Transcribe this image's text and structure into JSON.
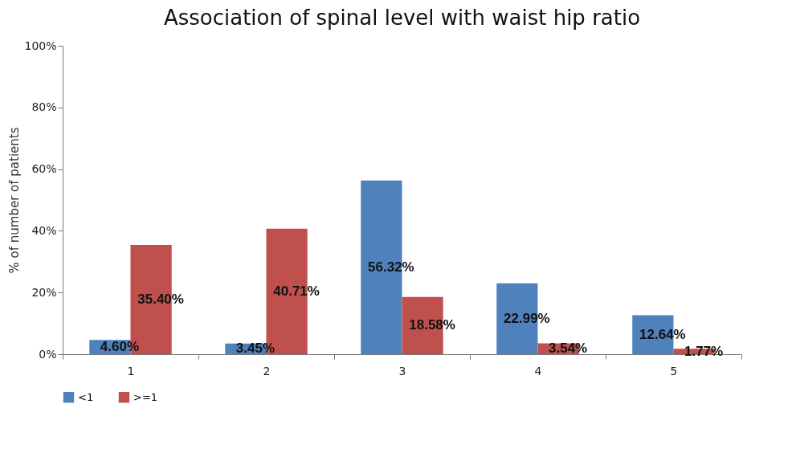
{
  "chart_data": {
    "type": "bar",
    "title": "Association of spinal level with waist hip ratio",
    "ylabel": "% of number of patients",
    "categories": [
      "1",
      "2",
      "3",
      "4",
      "5"
    ],
    "series": [
      {
        "name": "<1",
        "color": "#4f81bd",
        "values": [
          4.6,
          3.45,
          56.32,
          22.99,
          12.64
        ],
        "value_labels": [
          "4.60%",
          "3.45%",
          "56.32%",
          "22.99%",
          "12.64%"
        ]
      },
      {
        "name": ">=1",
        "color": "#c0504d",
        "values": [
          35.4,
          40.71,
          18.58,
          3.54,
          1.77
        ],
        "value_labels": [
          "35.40%",
          "40.71%",
          "18.58%",
          "3.54%",
          "1.77%"
        ]
      }
    ],
    "ylim": [
      0,
      100
    ],
    "yticks": [
      {
        "value": 0,
        "label": "0%"
      },
      {
        "value": 20,
        "label": "20%"
      },
      {
        "value": 40,
        "label": "40%"
      },
      {
        "value": 60,
        "label": "60%"
      },
      {
        "value": 80,
        "label": "80%"
      },
      {
        "value": 100,
        "label": "100%"
      }
    ],
    "grid": false,
    "legend": "bottom"
  }
}
